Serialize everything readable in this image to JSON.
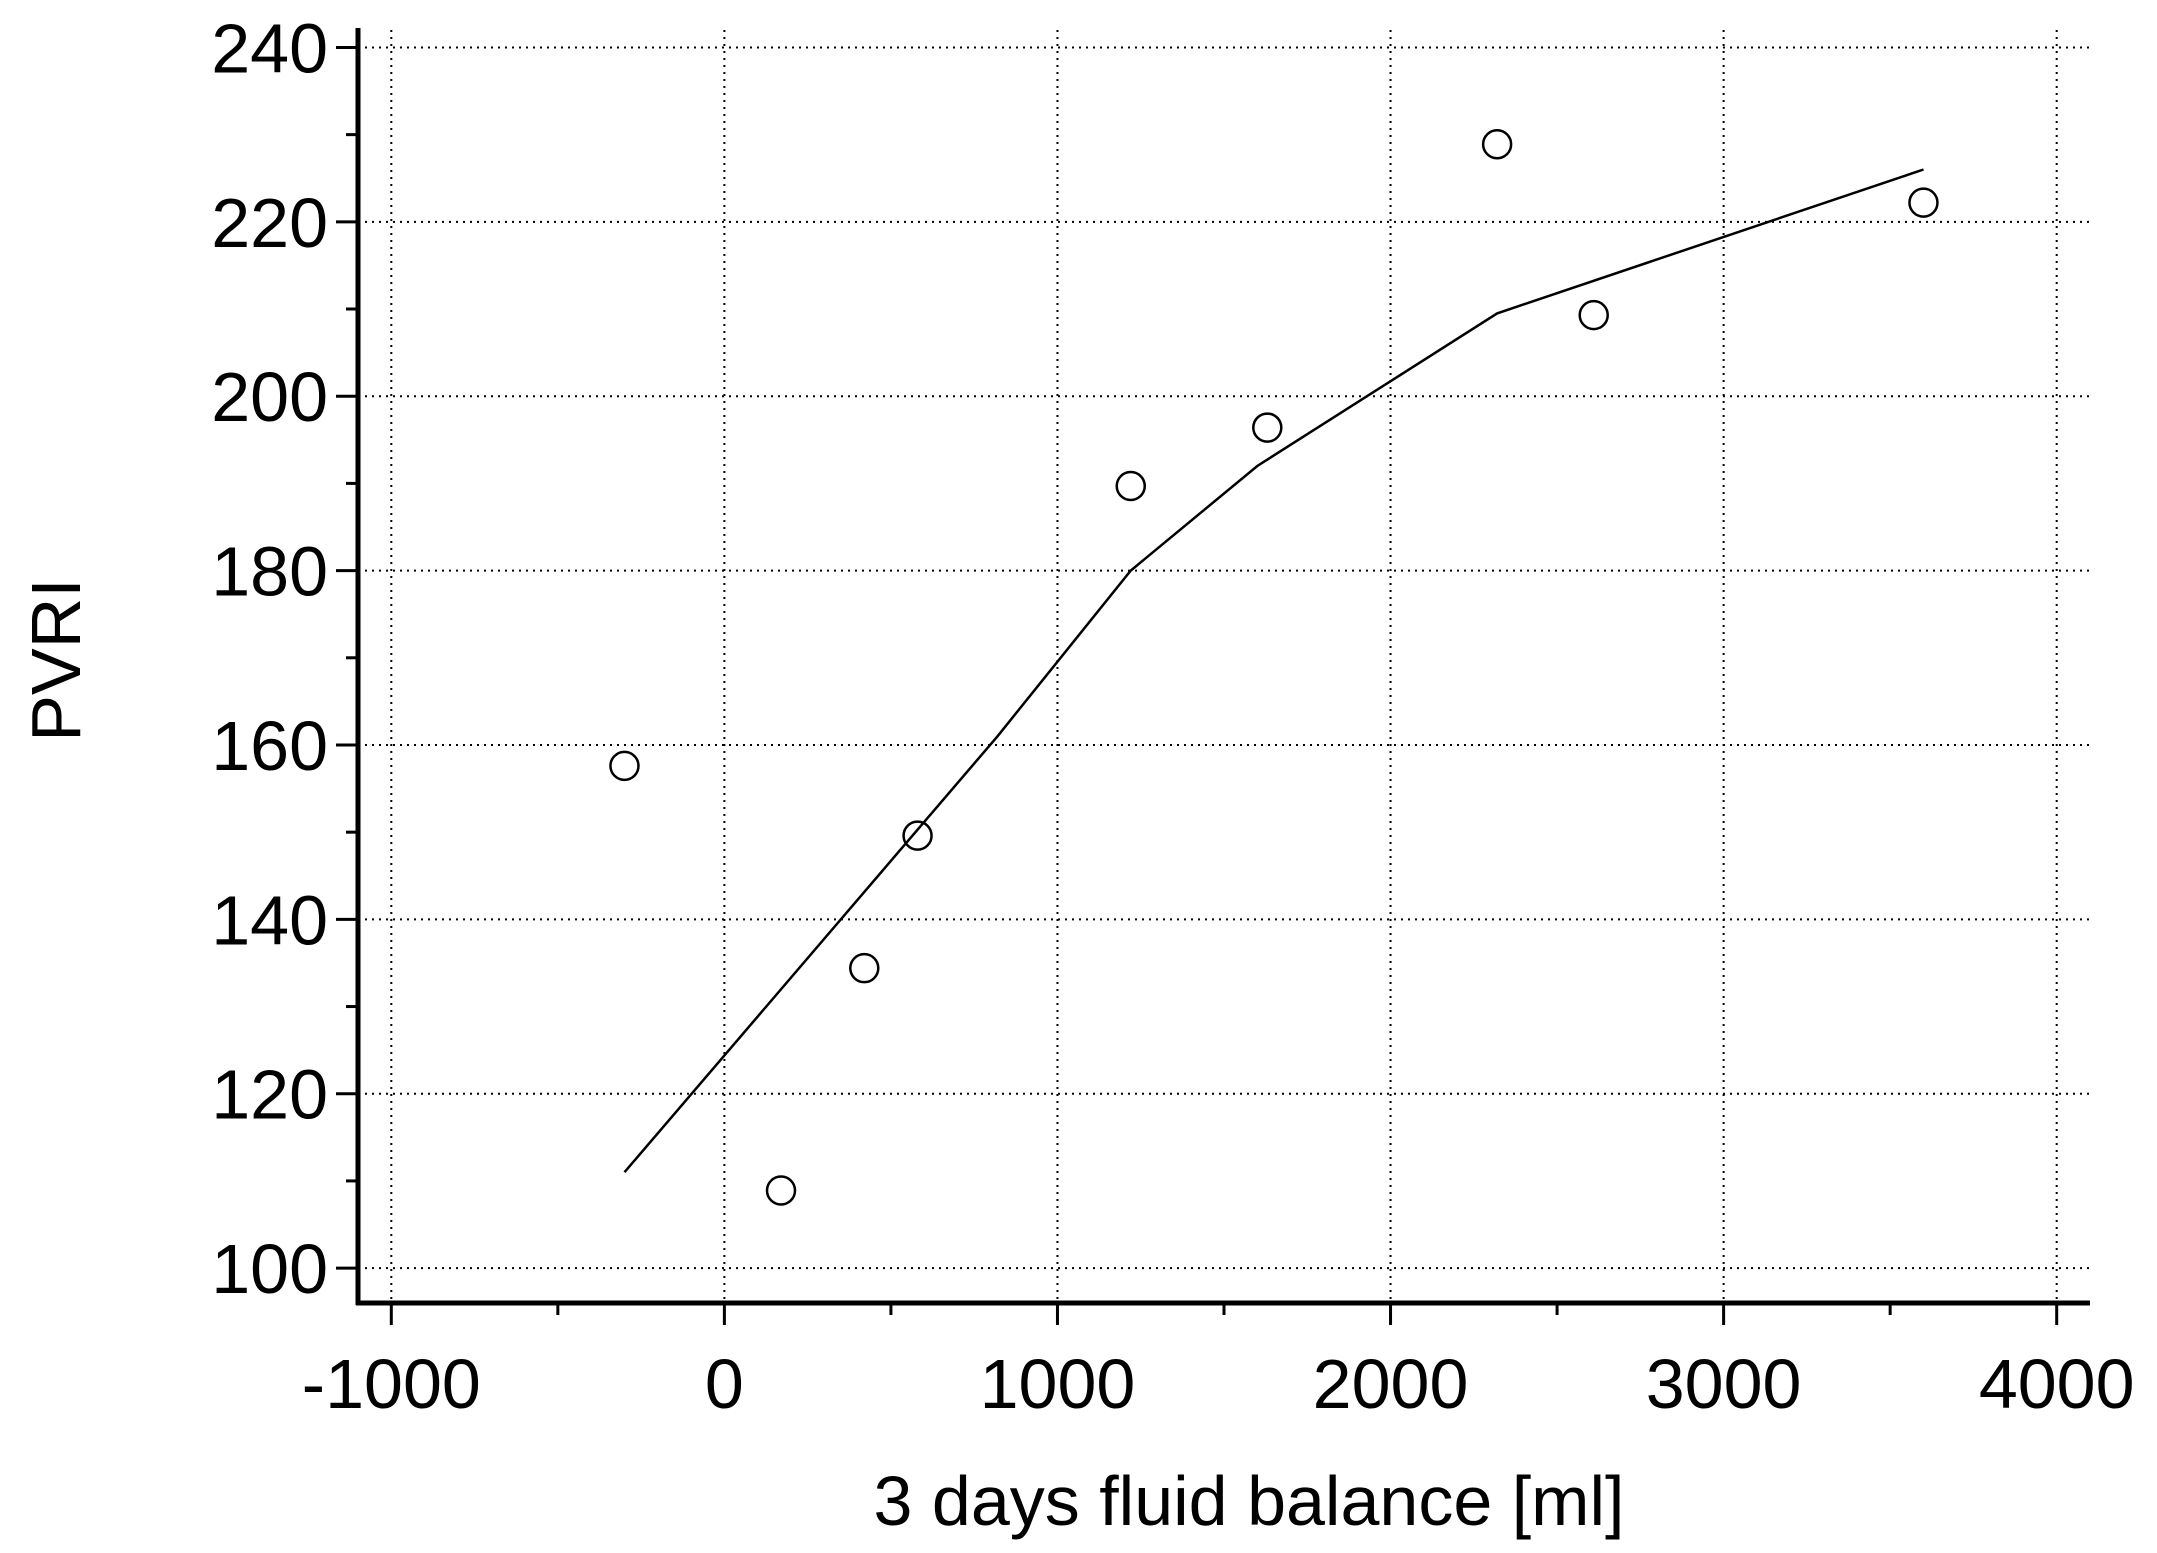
{
  "chart_data": {
    "type": "scatter",
    "title": "",
    "xlabel": "3 days fluid balance [ml]",
    "ylabel": "PVRI",
    "xlim": [
      -1100,
      4100
    ],
    "ylim": [
      96,
      242
    ],
    "x_ticks": [
      -1000,
      0,
      1000,
      2000,
      3000,
      4000
    ],
    "x_tick_labels": [
      "-1000",
      "0",
      "1000",
      "2000",
      "3000",
      "4000"
    ],
    "y_ticks": [
      100,
      120,
      140,
      160,
      180,
      200,
      220,
      240
    ],
    "y_tick_labels": [
      "100",
      "120",
      "140",
      "160",
      "180",
      "200",
      "220",
      "240"
    ],
    "x_minor_ticks": [
      -500,
      500,
      1500,
      2500,
      3500
    ],
    "y_minor_ticks": [
      110,
      130,
      150,
      170,
      190,
      210,
      230
    ],
    "grid": true,
    "grid_style": "dotted",
    "series": [
      {
        "kind": "points",
        "marker": "open-circle",
        "points": [
          [
            -300,
            157.6
          ],
          [
            170,
            108.9
          ],
          [
            420,
            134.4
          ],
          [
            580,
            149.6
          ],
          [
            1220,
            189.7
          ],
          [
            1630,
            196.4
          ],
          [
            2320,
            228.9
          ],
          [
            2610,
            209.3
          ],
          [
            3600,
            222.2
          ]
        ]
      },
      {
        "kind": "line",
        "points": [
          [
            -300,
            111
          ],
          [
            820,
            161
          ],
          [
            1220,
            180
          ],
          [
            1600,
            192
          ],
          [
            2320,
            209.5
          ],
          [
            3600,
            226
          ]
        ]
      }
    ],
    "colors": {
      "ink": "#000000",
      "grid": "#000000",
      "background": "#ffffff"
    }
  }
}
